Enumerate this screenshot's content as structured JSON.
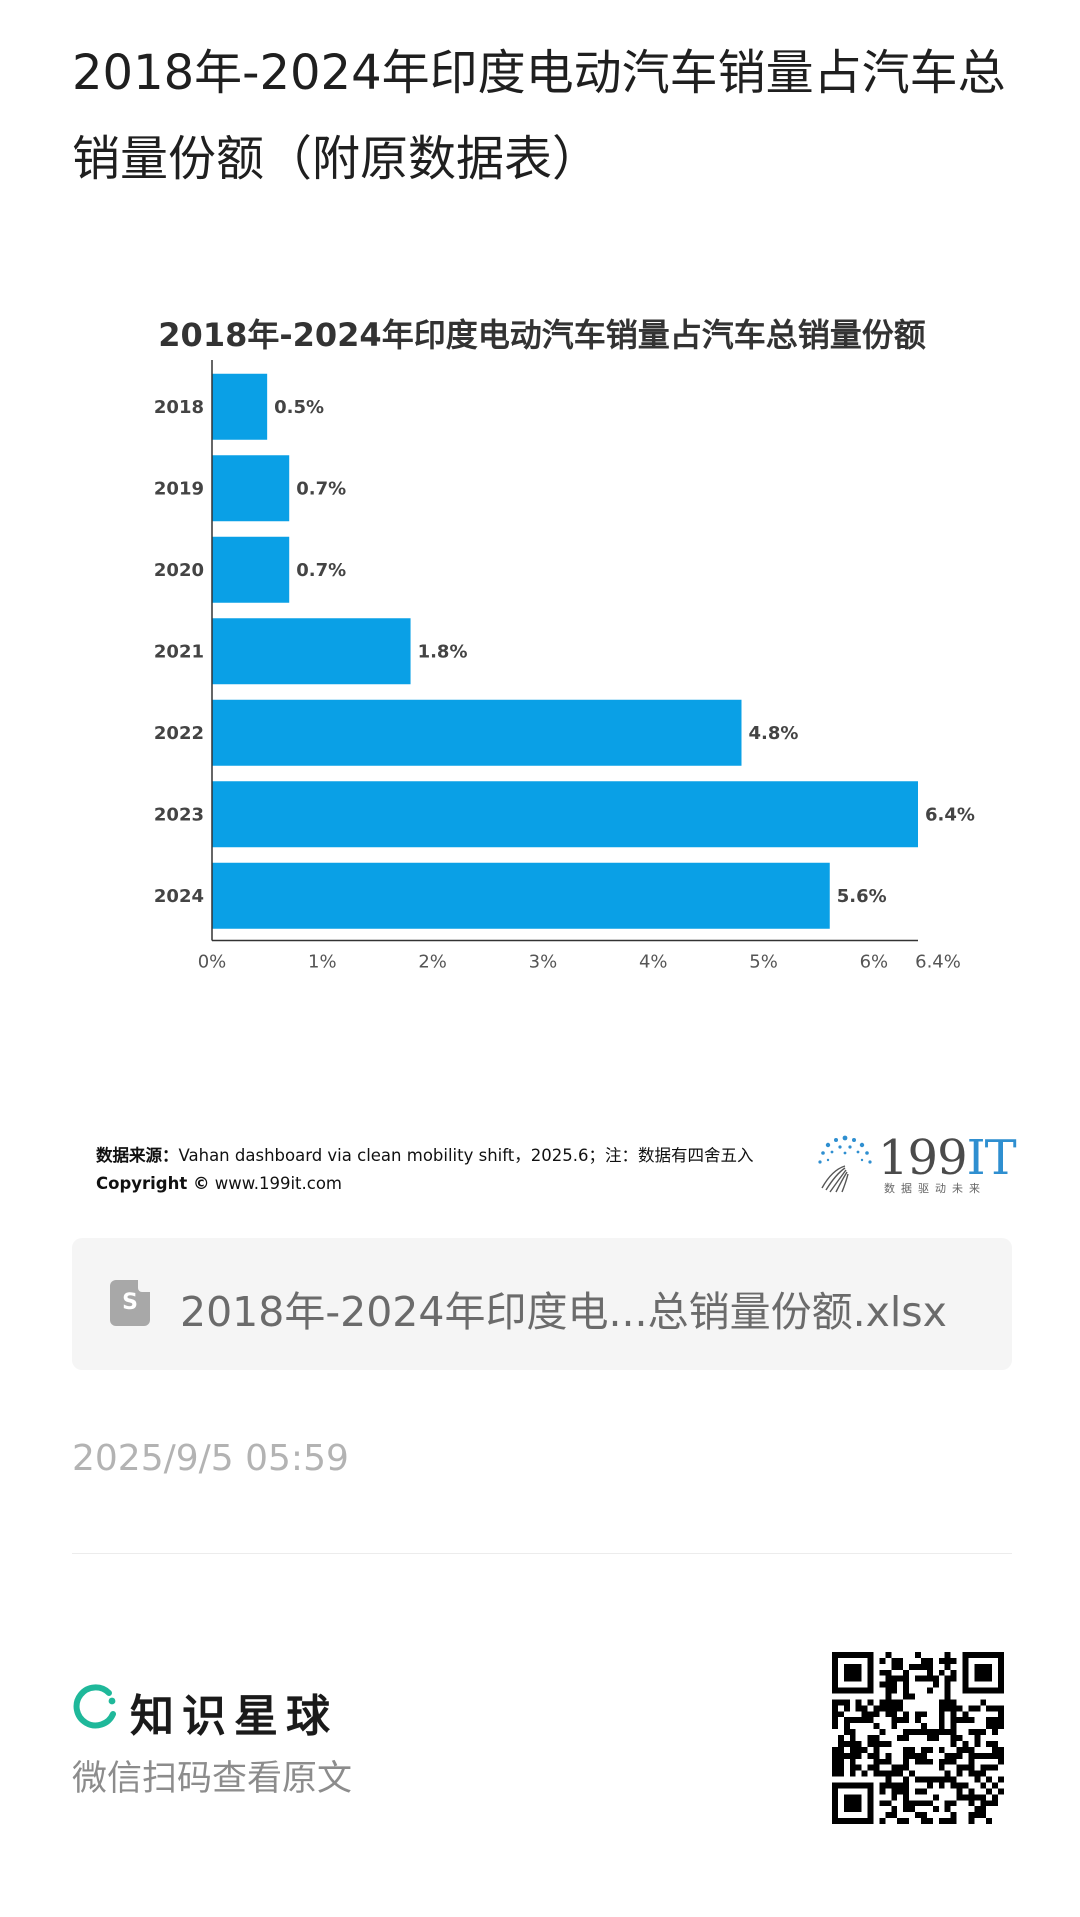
{
  "post": {
    "title": "2018年-2024年印度电动汽车销量占汽车总销量份额（附原数据表）"
  },
  "chart_data": {
    "type": "bar",
    "orientation": "horizontal",
    "title": "2018年-2024年印度电动汽车销量占汽车总销量份额",
    "categories": [
      "2018",
      "2019",
      "2020",
      "2021",
      "2022",
      "2023",
      "2024"
    ],
    "values": [
      0.5,
      0.7,
      0.7,
      1.8,
      4.8,
      6.4,
      5.6
    ],
    "data_labels": [
      "0.5%",
      "0.7%",
      "0.7%",
      "1.8%",
      "4.8%",
      "6.4%",
      "5.6%"
    ],
    "xticks": [
      "0%",
      "1%",
      "2%",
      "3%",
      "4%",
      "5%",
      "6%",
      "6.4%"
    ],
    "xtick_values": [
      0,
      1,
      2,
      3,
      4,
      5,
      6,
      6.4
    ],
    "xlim": [
      0,
      6.4
    ],
    "xlabel": "",
    "ylabel": "",
    "grid": false,
    "legend": "none",
    "bar_color": "#0aa0e6"
  },
  "source": {
    "label": "数据来源：",
    "text": "Vahan dashboard via clean mobility shift，2025.6；注：数据有四舍五入",
    "copyright_label": "Copyright ©",
    "copyright_site": "www.199it.com"
  },
  "logo": {
    "number": "199",
    "suffix": "IT",
    "tagline": "数据驱动未来"
  },
  "file": {
    "icon": "spreadsheet-file-icon",
    "icon_letter": "S",
    "name": "2018年-2024年印度电...总销量份额.xlsx"
  },
  "timestamp": "2025/9/5 05:59",
  "footer": {
    "brand_icon": "zsxq-logo-icon",
    "brand_name": "知识星球",
    "scan_hint": "微信扫码查看原文",
    "qr_icon": "qr-code-icon"
  },
  "colors": {
    "bar": "#0aa0e6",
    "brand_green": "#1fb89a",
    "logo_blue": "#2f8fd0"
  }
}
